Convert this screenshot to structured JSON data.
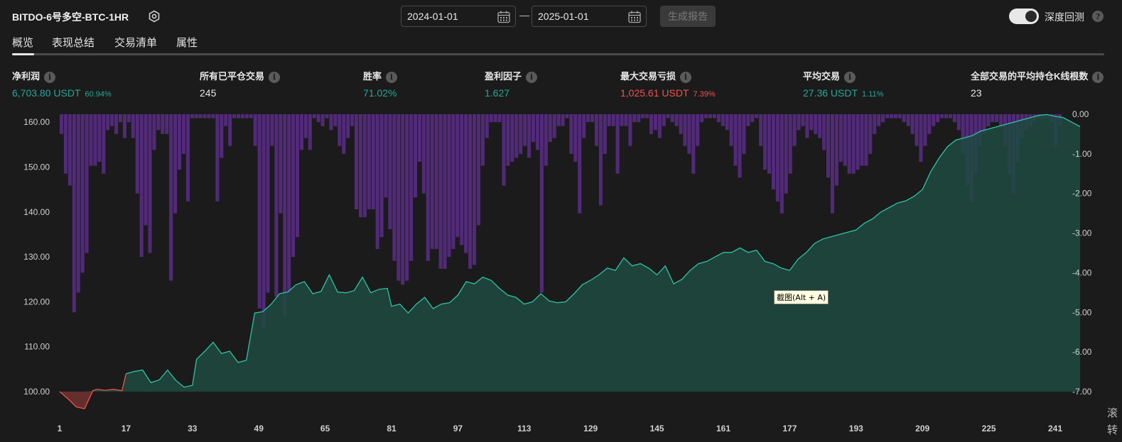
{
  "header": {
    "title": "BITDO-6号多空-BTC-1HR",
    "start_date": "2024-01-01",
    "separator": "—",
    "end_date": "2025-01-01",
    "generate_label": "生成报告",
    "deep_backtest_label": "深度回测",
    "deep_backtest_on": true
  },
  "tabs": [
    {
      "label": "概览",
      "active": true
    },
    {
      "label": "表现总结",
      "active": false
    },
    {
      "label": "交易清单",
      "active": false
    },
    {
      "label": "属性",
      "active": false
    }
  ],
  "metrics": {
    "net_profit": {
      "label": "净利润",
      "value": "6,703.80 USDT",
      "sub": "60.94%"
    },
    "closed_trades": {
      "label": "所有已平仓交易",
      "value": "245"
    },
    "win_rate": {
      "label": "胜率",
      "value": "71.02%"
    },
    "profit_factor": {
      "label": "盈利因子",
      "value": "1.627"
    },
    "max_loss": {
      "label": "最大交易亏损",
      "value": "1,025.61 USDT",
      "sub": "7.39%"
    },
    "avg_trade": {
      "label": "平均交易",
      "value": "27.36 USDT",
      "sub": "1.11%"
    },
    "avg_bars": {
      "label": "全部交易的平均持仓K线根数",
      "value": "23"
    }
  },
  "tooltip": "截图(Alt + A)",
  "edge_text": [
    "滚",
    "转"
  ],
  "colors": {
    "equity_line": "#2ec4a5",
    "equity_fill": "#1f4a40",
    "loss_line": "#ef5350",
    "drawdown_bar": "#5c2d8a",
    "profit": "#26a69a",
    "loss": "#ef5350"
  },
  "chart_data": {
    "type": "area",
    "x_ticks": [
      "1",
      "17",
      "33",
      "49",
      "65",
      "81",
      "97",
      "113",
      "129",
      "145",
      "161",
      "177",
      "193",
      "209",
      "225",
      "241"
    ],
    "left_ticks": [
      "100.00",
      "110.00",
      "120.00",
      "130.00",
      "140.00",
      "150.00",
      "160.00"
    ],
    "right_ticks": [
      "0.00",
      "-1.00",
      "-2.00",
      "-3.00",
      "-4.00",
      "-5.00",
      "-6.00",
      "-7.00"
    ],
    "left_ylim": [
      100,
      161.7
    ],
    "right_ylim": [
      -7,
      0
    ],
    "series": [
      {
        "kind": "equity_line",
        "x": [
          1,
          3,
          5,
          7,
          9,
          10,
          12,
          14,
          16,
          17,
          19,
          21,
          23,
          25,
          27,
          29,
          31,
          33,
          34,
          36,
          38,
          40,
          42,
          44,
          46,
          48,
          50,
          52,
          54,
          56,
          58,
          60,
          62,
          64,
          66,
          68,
          70,
          72,
          74,
          76,
          78,
          80,
          81,
          83,
          85,
          87,
          89,
          91,
          93,
          95,
          97,
          99,
          101,
          103,
          105,
          107,
          109,
          111,
          113,
          115,
          117,
          119,
          121,
          123,
          125,
          127,
          129,
          131,
          133,
          135,
          137,
          139,
          141,
          143,
          145,
          147,
          149,
          151,
          153,
          155,
          157,
          159,
          161,
          163,
          165,
          167,
          169,
          171,
          173,
          175,
          177,
          179,
          181,
          183,
          185,
          187,
          189,
          191,
          193,
          195,
          197,
          199,
          201,
          203,
          205,
          207,
          209,
          211,
          213,
          215,
          217,
          219,
          221,
          223,
          225,
          227,
          229,
          231,
          233,
          235,
          237,
          239,
          241,
          243,
          245,
          247
        ],
        "y": [
          100.0,
          98.4,
          96.6,
          96.2,
          100.2,
          100.5,
          100.3,
          100.5,
          100.2,
          104.0,
          104.5,
          104.8,
          102.0,
          102.6,
          104.8,
          102.5,
          101.0,
          101.4,
          107.2,
          109.0,
          111.0,
          108.5,
          109.0,
          106.5,
          107.0,
          117.5,
          117.8,
          119.5,
          121.8,
          122.2,
          123.8,
          124.5,
          121.8,
          122.3,
          126.0,
          122.2,
          122.0,
          122.5,
          125.5,
          122.0,
          122.8,
          123.0,
          119.0,
          119.5,
          117.5,
          119.5,
          121.0,
          118.5,
          119.5,
          119.8,
          121.5,
          124.5,
          124.0,
          125.5,
          124.8,
          123.0,
          121.5,
          121.0,
          119.5,
          120.0,
          121.8,
          120.2,
          119.8,
          120.0,
          121.8,
          123.8,
          124.8,
          126.0,
          127.5,
          127.0,
          129.8,
          128.0,
          128.5,
          127.5,
          126.0,
          128.0,
          124.0,
          125.0,
          127.0,
          128.5,
          129.0,
          130.0,
          131.0,
          131.0,
          132.0,
          131.0,
          131.5,
          129.0,
          128.5,
          127.5,
          127.0,
          129.5,
          131.0,
          133.0,
          134.0,
          134.5,
          135.0,
          135.5,
          136.0,
          137.5,
          138.5,
          140.0,
          141.0,
          142.0,
          142.5,
          143.5,
          145.0,
          149.0,
          152.0,
          154.5,
          156.0,
          156.5,
          157.0,
          158.0,
          158.5,
          159.0,
          159.5,
          160.0,
          160.5,
          161.0,
          161.5,
          161.7,
          161.3,
          161.0,
          160.0,
          159.0
        ],
        "note": ""
      }
    ],
    "drawdown_pct": [
      -0.5,
      -1.5,
      -1.8,
      -5.0,
      -4.5,
      -4.0,
      -3.5,
      -1.3,
      -1.3,
      -1.2,
      -1.5,
      -0.4,
      -0.3,
      -0.5,
      -0.2,
      -0.6,
      -0.2,
      -0.6,
      -2.0,
      -3.6,
      -2.8,
      -3.5,
      -0.9,
      -0.4,
      -0.5,
      -0.5,
      -4.2,
      -2.5,
      -1.4,
      -1.0,
      -2.2,
      -0.1,
      -0.1,
      -0.1,
      -0.1,
      -0.1,
      -0.1,
      -2.2,
      -1.1,
      -0.3,
      -0.8,
      -0.1,
      -0.1,
      -0.1,
      -0.1,
      -0.1,
      -0.8,
      -4.9,
      -5.4,
      -4.5,
      -0.8,
      -4.6,
      -2.5,
      -5.1,
      -4.5,
      -3.6,
      -3.1,
      -0.9,
      -0.6,
      -0.9,
      -0.1,
      -0.2,
      -0.3,
      -0.1,
      -0.4,
      -0.3,
      -0.8,
      -1.0,
      -0.6,
      -0.3,
      -2.4,
      -2.6,
      -2.6,
      -2.4,
      -2.4,
      -3.4,
      -3.1,
      -2.1,
      -2.9,
      -3.7,
      -4.2,
      -4.3,
      -4.2,
      -3.7,
      -2.1,
      -1.2,
      -2.0,
      -3.7,
      -3.4,
      -3.4,
      -3.9,
      -3.9,
      -3.6,
      -3.4,
      -3.1,
      -3.3,
      -3.5,
      -3.9,
      -3.8,
      -2.8,
      -1.3,
      -0.6,
      -0.2,
      -0.2,
      -0.2,
      -1.8,
      -1.3,
      -1.2,
      -1.1,
      -1.0,
      -0.8,
      -1.1,
      -0.7,
      -0.9,
      -4.5,
      -1.3,
      -0.7,
      -0.6,
      -0.3,
      -0.3,
      -0.1,
      -1.0,
      -1.2,
      -2.5,
      -0.6,
      -0.2,
      -0.2,
      -0.8,
      -2.3,
      -1.0,
      -0.3,
      -0.3,
      -1.5,
      -0.3,
      -0.3,
      -0.8,
      -0.2,
      -0.2,
      -0.1,
      -0.1,
      -0.5,
      -0.4,
      -0.6,
      -0.3,
      -0.1,
      -0.2,
      -0.3,
      -0.5,
      -0.8,
      -1.0,
      -1.5,
      -0.8,
      -0.2,
      -0.1,
      -0.1,
      -0.1,
      -0.2,
      -0.3,
      -0.4,
      -0.8,
      -1.3,
      -1.6,
      -1.0,
      -0.3,
      -0.2,
      -0.1,
      -0.8,
      -1.4,
      -1.5,
      -1.9,
      -2.2,
      -2.5,
      -2.0,
      -1.5,
      -0.8,
      -0.4,
      -0.3,
      -0.6,
      -0.4,
      -0.5,
      -0.6,
      -0.9,
      -1.6,
      -2.5,
      -1.8,
      -1.2,
      -1.3,
      -1.5,
      -1.5,
      -1.4,
      -1.3,
      -1.3,
      -1.0,
      -0.5,
      -0.3,
      -0.2,
      -0.1,
      -0.1,
      -0.1,
      -0.1,
      -0.2,
      -0.3,
      -0.5,
      -0.8,
      -1.2,
      -0.8,
      -0.5,
      -0.3,
      -0.2,
      -0.1,
      -0.1,
      -0.1,
      -0.2,
      -0.4,
      -1.0,
      -1.8,
      -2.2,
      -1.5,
      -0.8,
      -0.5,
      -0.3,
      -0.2,
      -0.2,
      -0.3,
      -0.8,
      -1.5,
      -2.0,
      -1.2,
      -0.6,
      -0.4,
      -0.3,
      -0.2,
      -0.1,
      -0.1,
      -0.1,
      -0.2,
      -0.8,
      -0.3
    ]
  }
}
